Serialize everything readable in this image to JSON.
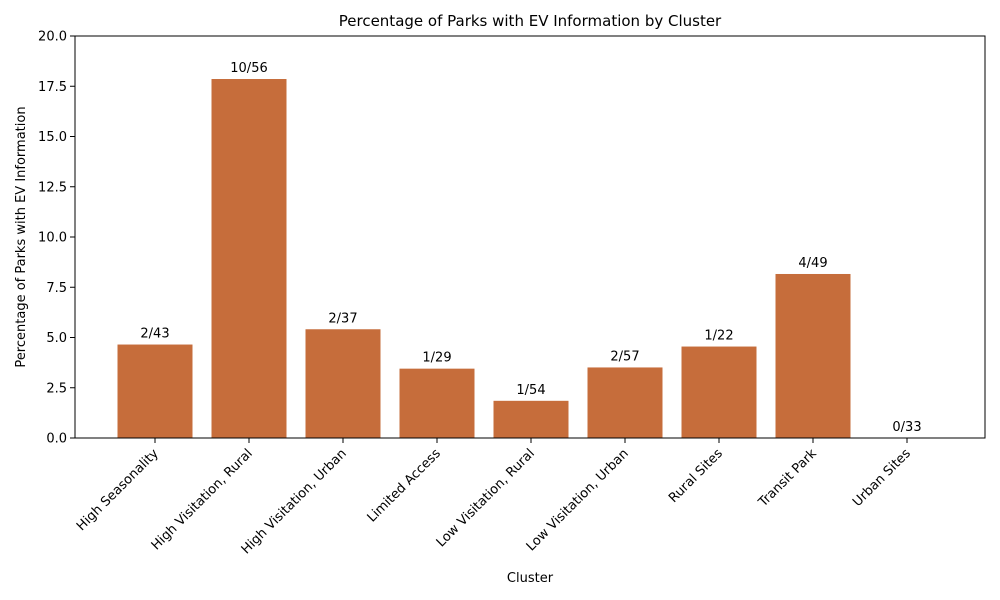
{
  "chart_data": {
    "type": "bar",
    "title": "Percentage of Parks with EV Information by Cluster",
    "xlabel": "Cluster",
    "ylabel": "Percentage of Parks with EV Information",
    "ylim": [
      0,
      20
    ],
    "yticks": [
      "0.0",
      "2.5",
      "5.0",
      "7.5",
      "10.0",
      "12.5",
      "15.0",
      "17.5",
      "20.0"
    ],
    "grid": false,
    "bar_color": "#c66d3b",
    "categories": [
      "High Seasonality",
      "High Visitation, Rural",
      "High Visitation, Urban",
      "Limited Access",
      "Low Visitation, Rural",
      "Low Visitation, Urban",
      "Rural Sites",
      "Transit Park",
      "Urban Sites"
    ],
    "values": [
      4.65,
      17.86,
      5.41,
      3.45,
      1.85,
      3.51,
      4.55,
      8.16,
      0.0
    ],
    "data_labels": [
      "2/43",
      "10/56",
      "2/37",
      "1/29",
      "1/54",
      "2/57",
      "1/22",
      "4/49",
      "0/33"
    ]
  }
}
